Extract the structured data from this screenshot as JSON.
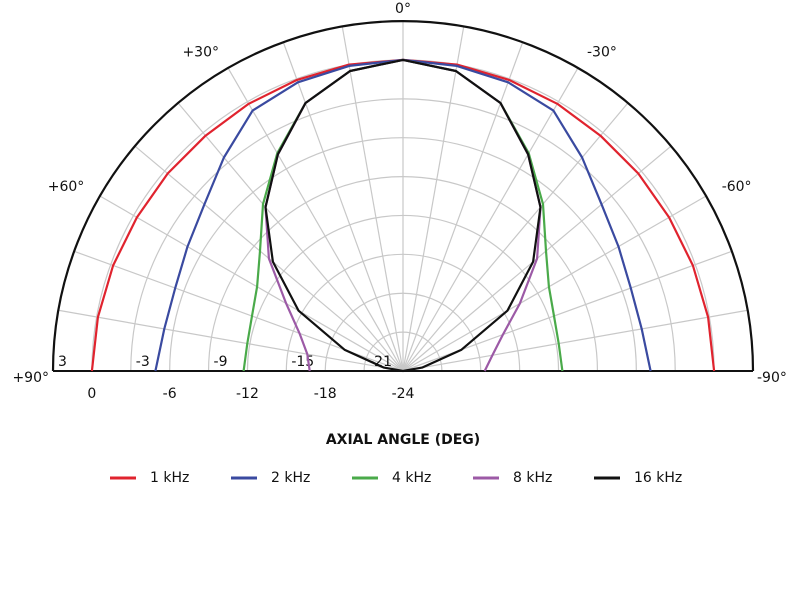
{
  "chart_data": {
    "type": "polar",
    "title": "AXIAL ANGLE (DEG)",
    "theta": [
      90,
      80,
      70,
      60,
      50,
      40,
      30,
      20,
      10,
      0,
      -10,
      -20,
      -30,
      -40,
      -50,
      -60,
      -70,
      -80,
      -90
    ],
    "thetalim": [
      -90,
      90
    ],
    "thetaticks": [
      {
        "value": 0,
        "label": "0°"
      },
      {
        "value": 30,
        "label": "+30°"
      },
      {
        "value": -30,
        "label": "-30°"
      },
      {
        "value": 60,
        "label": "+60°"
      },
      {
        "value": -60,
        "label": "-60°"
      },
      {
        "value": 90,
        "label": "+90°"
      },
      {
        "value": -90,
        "label": "-90°"
      }
    ],
    "rlim": [
      -24,
      3
    ],
    "rticks": [
      3,
      0,
      -3,
      -6,
      -9,
      -12,
      -15,
      -18,
      -21,
      -24
    ],
    "grid": true,
    "series": [
      {
        "name": "1 kHz",
        "color": "#e0232e",
        "values": [
          0,
          -0.1,
          -0.2,
          -0.3,
          -0.3,
          -0.3,
          -0.2,
          -0.1,
          0,
          0,
          0,
          -0.1,
          -0.2,
          -0.3,
          -0.3,
          -0.3,
          -0.2,
          -0.1,
          0
        ]
      },
      {
        "name": "2 kHz",
        "color": "#3a4aa0",
        "values": [
          -4.9,
          -5.3,
          -5.3,
          -4.8,
          -4,
          -2.5,
          -0.8,
          -0.3,
          -0.1,
          0,
          -0.1,
          -0.3,
          -0.8,
          -2.5,
          -4,
          -4.8,
          -5.3,
          -5.3,
          -4.9
        ]
      },
      {
        "name": "4 kHz",
        "color": "#4aaa4a",
        "values": [
          -11.7,
          -11.8,
          -11.6,
          -11,
          -9.6,
          -7.2,
          -4.6,
          -2,
          -0.5,
          0,
          -0.5,
          -2,
          -4.6,
          -7.2,
          -9.6,
          -11,
          -11.6,
          -11.8,
          -11.7
        ]
      },
      {
        "name": "8 kHz",
        "color": "#9c5aa6",
        "values": [
          -16.8,
          -16.5,
          -15.5,
          -13.6,
          -10.5,
          -7.5,
          -4.7,
          -2,
          -0.5,
          0,
          -0.5,
          -2,
          -4.7,
          -7.5,
          -10.5,
          -13.6,
          -15.8,
          -17,
          -17.7
        ]
      },
      {
        "name": "16 kHz",
        "color": "#111111",
        "values": [
          -24,
          -22.5,
          -19.2,
          -14.7,
          -10.9,
          -7.5,
          -4.7,
          -2,
          -0.5,
          0,
          -0.5,
          -2,
          -4.7,
          -7.5,
          -10.9,
          -14.7,
          -19.2,
          -22.5,
          -24
        ]
      }
    ]
  }
}
